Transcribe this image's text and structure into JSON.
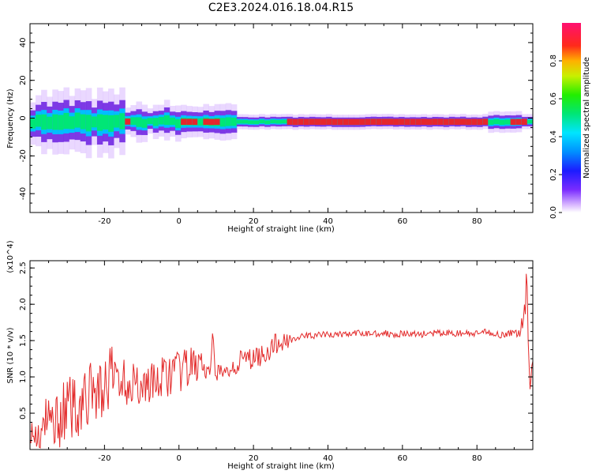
{
  "title": "C2E3.2024.016.18.04.R15",
  "colors": {
    "snr_line": "#e32b2b",
    "band_core": "#e5262d",
    "band_mid": "#00e676",
    "band_outer": "#00bfff",
    "band_halo": "#6a1de0",
    "band_faint": "#d9b8ff"
  },
  "chart_data": [
    {
      "type": "heatmap",
      "title": "C2E3.2024.016.18.04.R15",
      "xlabel": "Height of straight line (km)",
      "ylabel": "Frequency (Hz)",
      "xlim": [
        -40,
        95
      ],
      "ylim": [
        -50,
        50
      ],
      "x_ticks": [
        -20,
        0,
        20,
        40,
        60,
        80
      ],
      "y_ticks": [
        -40,
        -20,
        0,
        20,
        40
      ],
      "x_tick_labels": [
        "-20",
        "0",
        "20",
        "40",
        "60",
        "80"
      ],
      "y_tick_labels": [
        "-40",
        "-20",
        "0",
        "20",
        "40"
      ],
      "band_center_hz": -2,
      "colorbar": {
        "label": "Normalized spectral amplitude",
        "range": [
          0,
          1
        ],
        "ticks": [
          0.0,
          0.2,
          0.4,
          0.6,
          0.8
        ],
        "tick_labels": [
          "0.0",
          "0.2",
          "0.4",
          "0.6",
          "0.8"
        ],
        "colormap": "rainbow (violet-blue-cyan-green-yellow-red-magenta)"
      }
    },
    {
      "type": "line",
      "xlabel": "Height of straight line (km)",
      "ylabel": "SNR (10 * v/v)",
      "y_multiplier": "(x10^4)",
      "xlim": [
        -40,
        95
      ],
      "ylim": [
        0,
        2.6
      ],
      "x_ticks": [
        -20,
        0,
        20,
        40,
        60,
        80
      ],
      "y_ticks": [
        0.5,
        1.0,
        1.5,
        2.0,
        2.5
      ],
      "x_tick_labels": [
        "-20",
        "0",
        "20",
        "40",
        "60",
        "80"
      ],
      "y_tick_labels": [
        "0.5",
        "1.0",
        "1.5",
        "2.0",
        "2.5"
      ],
      "series": [
        {
          "x": [
            -40,
            -37.5,
            -35,
            -32.5,
            -30,
            -27.5,
            -25,
            -22.5,
            -20,
            -18,
            -16,
            -14,
            -12,
            -10,
            -8,
            -6,
            -4,
            -2,
            0,
            2,
            4,
            6,
            8,
            9,
            10,
            12,
            14,
            16,
            18,
            20,
            22,
            24,
            26,
            28,
            30,
            35,
            40,
            45,
            50,
            55,
            60,
            65,
            70,
            75,
            80,
            83,
            86,
            89,
            92,
            93.5,
            94,
            94.5,
            95
          ],
          "y": [
            0.05,
            0.2,
            0.35,
            0.45,
            0.55,
            0.6,
            0.7,
            0.8,
            0.85,
            1.0,
            1.05,
            0.9,
            0.95,
            0.85,
            0.95,
            0.9,
            1.0,
            1.05,
            1.05,
            1.1,
            1.15,
            1.2,
            0.9,
            1.3,
            1.1,
            1.0,
            1.15,
            1.2,
            1.25,
            1.25,
            1.3,
            1.35,
            1.45,
            1.48,
            1.52,
            1.57,
            1.58,
            1.59,
            1.6,
            1.6,
            1.59,
            1.59,
            1.6,
            1.6,
            1.59,
            1.62,
            1.58,
            1.6,
            1.6,
            2.35,
            1.1,
            0.95,
            1.15
          ]
        }
      ]
    }
  ]
}
